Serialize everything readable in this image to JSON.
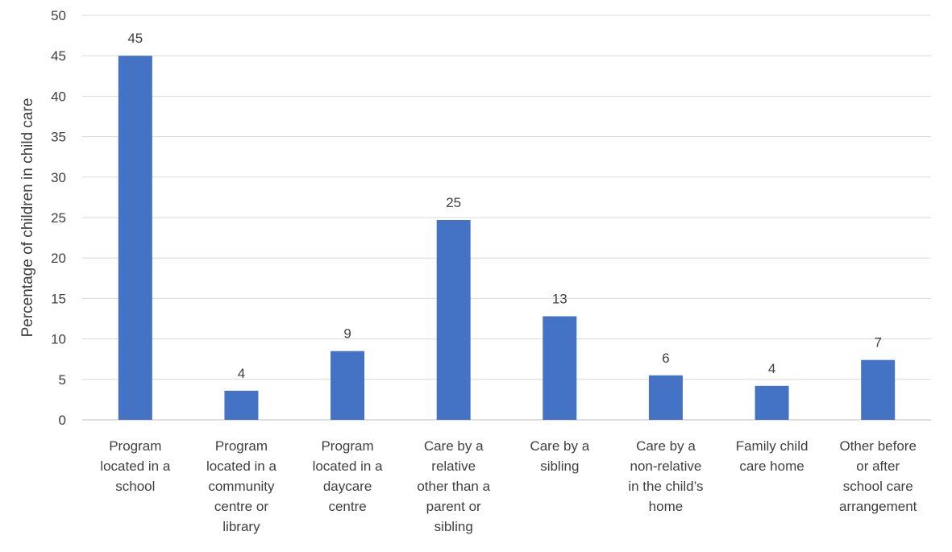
{
  "chart_data": {
    "type": "bar",
    "title": "",
    "xlabel": "",
    "ylabel": "Percentage of children in child care",
    "ylim": [
      0,
      50
    ],
    "yticks": [
      0,
      5,
      10,
      15,
      20,
      25,
      30,
      35,
      40,
      45,
      50
    ],
    "grid": true,
    "legend": "none",
    "bar_color": "#4472c4",
    "categories": [
      [
        "Program",
        "located in a",
        "school"
      ],
      [
        "Program",
        "located in a",
        "community",
        "centre or",
        "library"
      ],
      [
        "Program",
        "located in a",
        "daycare",
        "centre"
      ],
      [
        "Care by a",
        "relative",
        "other than a",
        "parent or",
        "sibling"
      ],
      [
        "Care by a",
        "sibling"
      ],
      [
        "Care by a",
        "non-relative",
        "in the child’s",
        "home"
      ],
      [
        "Family child",
        "care home"
      ],
      [
        "Other before",
        "or after",
        "school care",
        "arrangement"
      ]
    ],
    "values": [
      45,
      3.6,
      8.5,
      24.7,
      12.8,
      5.5,
      4.2,
      7.4
    ],
    "data_labels": [
      "45",
      "4",
      "9",
      "25",
      "13",
      "6",
      "4",
      "7"
    ]
  }
}
